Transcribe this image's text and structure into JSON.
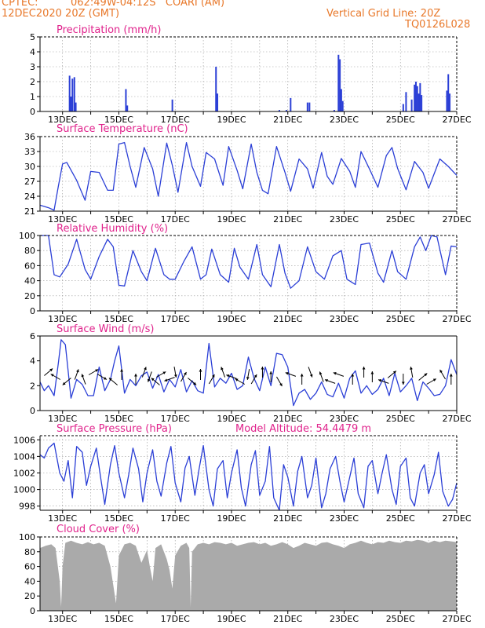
{
  "header": {
    "source": "CPTEC:",
    "location": "062:49W-04:12S   COARI (AM)",
    "datetime": "12DEC2020 20Z (GMT)",
    "grid_note": "Vertical Grid Line: 20Z",
    "product_code": "TQ0126L028"
  },
  "colors": {
    "header": "#e8782a",
    "title": "#e0238c",
    "line": "#2b3fd6",
    "cloud": "#aaaaaa",
    "grid": "#9a9a9a"
  },
  "chart_data": [
    {
      "type": "bar",
      "title": "Precipitation (mm/h)",
      "ylim": [
        0,
        5
      ],
      "yticks": [
        0,
        1,
        2,
        3,
        4,
        5
      ],
      "xlim": [
        12.2,
        27
      ],
      "xticks": [
        "13DEC",
        "15DEC",
        "17DEC",
        "19DEC",
        "21DEC",
        "23DEC",
        "25DEC",
        "27DEC"
      ],
      "grid": true,
      "bars": [
        {
          "x": 13.25,
          "y": 2.4
        },
        {
          "x": 13.3,
          "y": 1.0
        },
        {
          "x": 13.35,
          "y": 2.2
        },
        {
          "x": 13.42,
          "y": 2.3
        },
        {
          "x": 13.47,
          "y": 0.6
        },
        {
          "x": 15.25,
          "y": 1.5
        },
        {
          "x": 15.3,
          "y": 0.4
        },
        {
          "x": 16.9,
          "y": 0.8
        },
        {
          "x": 18.45,
          "y": 3.0
        },
        {
          "x": 18.5,
          "y": 1.2
        },
        {
          "x": 20.7,
          "y": 0.1
        },
        {
          "x": 20.95,
          "y": 0.1
        },
        {
          "x": 21.1,
          "y": 0.9
        },
        {
          "x": 21.7,
          "y": 0.6
        },
        {
          "x": 21.77,
          "y": 0.6
        },
        {
          "x": 22.65,
          "y": 0.1
        },
        {
          "x": 22.8,
          "y": 3.8
        },
        {
          "x": 22.85,
          "y": 3.5
        },
        {
          "x": 22.9,
          "y": 1.5
        },
        {
          "x": 22.95,
          "y": 0.7
        },
        {
          "x": 25.1,
          "y": 0.5
        },
        {
          "x": 25.2,
          "y": 1.3
        },
        {
          "x": 25.4,
          "y": 0.8
        },
        {
          "x": 25.5,
          "y": 1.8
        },
        {
          "x": 25.55,
          "y": 2.0
        },
        {
          "x": 25.6,
          "y": 1.7
        },
        {
          "x": 25.65,
          "y": 1.2
        },
        {
          "x": 25.7,
          "y": 1.9
        },
        {
          "x": 25.75,
          "y": 1.1
        },
        {
          "x": 26.65,
          "y": 1.4
        },
        {
          "x": 26.7,
          "y": 2.5
        },
        {
          "x": 26.75,
          "y": 1.2
        }
      ]
    },
    {
      "type": "line",
      "title": "Surface Temperature (nC)",
      "ylim": [
        21,
        36
      ],
      "yticks": [
        21,
        24,
        27,
        30,
        33,
        36
      ],
      "xlim": [
        12.2,
        27
      ],
      "xticks": [
        "13DEC",
        "15DEC",
        "17DEC",
        "19DEC",
        "21DEC",
        "23DEC",
        "25DEC",
        "27DEC"
      ],
      "grid": true,
      "x": [
        12.2,
        12.5,
        12.7,
        12.85,
        13.0,
        13.15,
        13.5,
        13.8,
        14.0,
        14.3,
        14.6,
        14.8,
        15.0,
        15.2,
        15.4,
        15.6,
        15.9,
        16.2,
        16.4,
        16.7,
        16.9,
        17.1,
        17.4,
        17.6,
        17.9,
        18.1,
        18.4,
        18.7,
        18.9,
        19.2,
        19.4,
        19.7,
        19.9,
        20.1,
        20.3,
        20.6,
        20.9,
        21.1,
        21.4,
        21.7,
        21.9,
        22.2,
        22.4,
        22.6,
        22.9,
        23.2,
        23.4,
        23.6,
        23.9,
        24.2,
        24.5,
        24.7,
        24.9,
        25.2,
        25.5,
        25.8,
        26.0,
        26.4,
        26.7,
        27.0
      ],
      "y": [
        22.2,
        21.7,
        21.2,
        26,
        30.5,
        30.8,
        27.2,
        23.2,
        29.0,
        28.8,
        25.2,
        25.2,
        34.5,
        34.8,
        30.0,
        25.8,
        33.8,
        29.5,
        24.0,
        34.7,
        30.2,
        24.8,
        34.8,
        30.0,
        26.0,
        32.8,
        31.5,
        26.2,
        34.0,
        29.2,
        25.5,
        34.5,
        28.8,
        25.2,
        24.5,
        34.0,
        28.8,
        25.0,
        31.5,
        29.5,
        25.6,
        32.8,
        28.0,
        26.4,
        31.6,
        29.0,
        25.8,
        33.0,
        29.5,
        25.8,
        32.2,
        33.8,
        29.6,
        25.3,
        31.0,
        28.8,
        25.6,
        31.5,
        30.0,
        28.2
      ]
    },
    {
      "type": "line",
      "title": "Relative Humidity (%)",
      "ylim": [
        0,
        100
      ],
      "yticks": [
        0,
        20,
        40,
        60,
        80,
        100
      ],
      "xlim": [
        12.2,
        27
      ],
      "xticks": [
        "13DEC",
        "15DEC",
        "17DEC",
        "19DEC",
        "21DEC",
        "23DEC",
        "25DEC",
        "27DEC"
      ],
      "grid": true,
      "x": [
        12.2,
        12.5,
        12.7,
        12.9,
        13.2,
        13.5,
        13.8,
        14.0,
        14.3,
        14.6,
        14.8,
        15.0,
        15.2,
        15.5,
        15.8,
        16.0,
        16.3,
        16.6,
        16.8,
        17.0,
        17.3,
        17.6,
        17.9,
        18.1,
        18.3,
        18.6,
        18.9,
        19.1,
        19.3,
        19.6,
        19.9,
        20.1,
        20.4,
        20.7,
        20.9,
        21.1,
        21.4,
        21.7,
        22.0,
        22.3,
        22.6,
        22.9,
        23.1,
        23.4,
        23.6,
        23.9,
        24.2,
        24.4,
        24.7,
        24.9,
        25.2,
        25.5,
        25.7,
        25.9,
        26.1,
        26.3,
        26.6,
        26.8,
        27.0
      ],
      "y": [
        100,
        100,
        48,
        45,
        62,
        95,
        55,
        42,
        72,
        95,
        85,
        34,
        33,
        80,
        52,
        40,
        83,
        48,
        42,
        42,
        65,
        85,
        42,
        48,
        82,
        48,
        38,
        83,
        58,
        42,
        88,
        48,
        32,
        88,
        50,
        30,
        40,
        85,
        52,
        42,
        73,
        80,
        42,
        35,
        88,
        90,
        50,
        38,
        80,
        52,
        42,
        85,
        98,
        80,
        100,
        98,
        48,
        86,
        85
      ]
    },
    {
      "type": "line",
      "title": "Surface Wind (m/s)",
      "ylim": [
        0,
        6
      ],
      "yticks": [
        0,
        2,
        4,
        6
      ],
      "xlim": [
        12.2,
        27
      ],
      "xticks": [
        "13DEC",
        "15DEC",
        "17DEC",
        "19DEC",
        "21DEC",
        "23DEC",
        "25DEC",
        "27DEC"
      ],
      "grid": false,
      "x": [
        12.2,
        12.35,
        12.5,
        12.7,
        12.85,
        12.95,
        13.1,
        13.3,
        13.5,
        13.7,
        13.9,
        14.1,
        14.3,
        14.5,
        14.7,
        14.85,
        15.0,
        15.2,
        15.4,
        15.6,
        15.8,
        16.0,
        16.2,
        16.4,
        16.6,
        16.8,
        17.0,
        17.2,
        17.4,
        17.6,
        17.8,
        18.0,
        18.2,
        18.4,
        18.6,
        18.8,
        19.0,
        19.2,
        19.4,
        19.6,
        19.8,
        20.0,
        20.2,
        20.4,
        20.6,
        20.8,
        21.0,
        21.2,
        21.4,
        21.6,
        21.8,
        22.0,
        22.2,
        22.4,
        22.6,
        22.8,
        23.0,
        23.2,
        23.4,
        23.6,
        23.8,
        24.0,
        24.2,
        24.4,
        24.6,
        24.8,
        25.0,
        25.2,
        25.4,
        25.6,
        25.8,
        26.0,
        26.2,
        26.4,
        26.6,
        26.8,
        27.0
      ],
      "y": [
        2.3,
        1.6,
        2.0,
        1.2,
        3.8,
        5.7,
        5.3,
        1.0,
        2.5,
        2.1,
        1.2,
        1.2,
        3.5,
        1.6,
        2.5,
        4.0,
        5.2,
        1.4,
        2.5,
        2.0,
        2.8,
        3.1,
        1.8,
        2.9,
        1.5,
        2.5,
        1.9,
        3.3,
        1.5,
        2.4,
        1.6,
        1.4,
        5.4,
        1.9,
        2.6,
        2.2,
        3.0,
        1.7,
        2.0,
        4.3,
        2.6,
        1.6,
        3.5,
        2.0,
        4.6,
        4.5,
        3.5,
        0.4,
        1.4,
        1.7,
        0.9,
        1.4,
        2.3,
        1.3,
        1.1,
        2.2,
        1.0,
        2.6,
        3.2,
        1.4,
        2.0,
        1.3,
        1.7,
        2.6,
        1.2,
        3.0,
        1.5,
        2.0,
        2.6,
        0.8,
        2.3,
        1.8,
        1.2,
        1.3,
        2.0,
        4.1,
        2.9
      ]
    },
    {
      "type": "line",
      "title": "Surface Pressure (hPa)",
      "annotation": "Model Altitude: 54.4479  m",
      "ylim": [
        997.5,
        1006.5
      ],
      "yticks": [
        998,
        1000,
        1002,
        1004,
        1006
      ],
      "xlim": [
        12.2,
        27
      ],
      "xticks": [
        "13DEC",
        "15DEC",
        "17DEC",
        "19DEC",
        "21DEC",
        "23DEC",
        "25DEC",
        "27DEC"
      ],
      "grid": true,
      "x": [
        12.2,
        12.35,
        12.5,
        12.7,
        12.9,
        13.05,
        13.2,
        13.35,
        13.5,
        13.7,
        13.85,
        14.0,
        14.2,
        14.35,
        14.5,
        14.7,
        14.85,
        15.0,
        15.2,
        15.35,
        15.5,
        15.7,
        15.85,
        16.0,
        16.2,
        16.35,
        16.5,
        16.7,
        16.85,
        17.0,
        17.2,
        17.35,
        17.5,
        17.7,
        17.85,
        18.0,
        18.2,
        18.35,
        18.5,
        18.7,
        18.85,
        19.0,
        19.2,
        19.35,
        19.5,
        19.7,
        19.85,
        20.0,
        20.2,
        20.35,
        20.5,
        20.7,
        20.85,
        21.0,
        21.2,
        21.35,
        21.5,
        21.7,
        21.85,
        22.0,
        22.2,
        22.35,
        22.5,
        22.7,
        22.85,
        23.0,
        23.2,
        23.35,
        23.5,
        23.7,
        23.85,
        24.0,
        24.2,
        24.35,
        24.5,
        24.7,
        24.85,
        25.0,
        25.2,
        25.35,
        25.5,
        25.7,
        25.85,
        26.0,
        26.2,
        26.35,
        26.5,
        26.7,
        26.85,
        27.0
      ],
      "y": [
        1004.2,
        1003.8,
        1005.0,
        1005.6,
        1002.0,
        1001.0,
        1003.5,
        999.0,
        1005.2,
        1004.5,
        1000.5,
        1002.8,
        1005.0,
        1001.5,
        998.2,
        1003.0,
        1005.3,
        1002.0,
        999.0,
        1001.8,
        1005.0,
        1002.5,
        998.5,
        1002.0,
        1004.8,
        1001.0,
        999.2,
        1003.2,
        1005.2,
        1000.8,
        998.5,
        1002.6,
        1004.0,
        999.3,
        1002.5,
        1005.3,
        1000.0,
        998.0,
        1002.5,
        1003.5,
        999.0,
        1002.0,
        1004.8,
        1000.2,
        998.0,
        1003.0,
        1004.7,
        999.3,
        1001.0,
        1005.2,
        999.0,
        997.5,
        1003.0,
        1001.5,
        998.0,
        1002.2,
        1004.0,
        999.0,
        1000.5,
        1003.8,
        997.8,
        999.5,
        1002.5,
        1004.0,
        1001.0,
        998.5,
        1001.5,
        1003.8,
        999.5,
        997.8,
        1002.8,
        1003.5,
        999.5,
        1002.0,
        1004.2,
        1000.0,
        998.2,
        1002.8,
        1003.8,
        999.0,
        998.0,
        1002.0,
        1003.0,
        999.5,
        1001.8,
        1004.5,
        999.8,
        998.0,
        998.8,
        1000.8
      ]
    },
    {
      "type": "area",
      "title": "Cloud Cover (%)",
      "ylim": [
        0,
        100
      ],
      "yticks": [
        0,
        20,
        40,
        60,
        80,
        100
      ],
      "xlim": [
        12.2,
        27
      ],
      "xticks": [
        "13DEC",
        "15DEC",
        "17DEC",
        "19DEC",
        "21DEC",
        "23DEC",
        "25DEC",
        "27DEC"
      ],
      "grid": true,
      "x": [
        12.2,
        12.4,
        12.6,
        12.75,
        12.9,
        12.95,
        13.0,
        13.1,
        13.3,
        13.5,
        13.7,
        13.9,
        14.1,
        14.3,
        14.5,
        14.7,
        14.8,
        14.9,
        15.0,
        15.2,
        15.4,
        15.6,
        15.8,
        16.0,
        16.1,
        16.2,
        16.3,
        16.5,
        16.7,
        16.8,
        16.9,
        17.0,
        17.2,
        17.4,
        17.5,
        17.55,
        17.6,
        17.8,
        18.0,
        18.2,
        18.4,
        18.6,
        18.8,
        19.0,
        19.2,
        19.4,
        19.6,
        19.8,
        20.0,
        20.2,
        20.4,
        20.6,
        20.8,
        21.0,
        21.2,
        21.4,
        21.6,
        21.8,
        22.0,
        22.2,
        22.4,
        22.6,
        22.8,
        23.0,
        23.2,
        23.4,
        23.6,
        23.8,
        24.0,
        24.2,
        24.4,
        24.6,
        24.8,
        25.0,
        25.2,
        25.4,
        25.6,
        25.8,
        26.0,
        26.2,
        26.4,
        26.6,
        26.8,
        27.0
      ],
      "y": [
        85,
        88,
        90,
        85,
        40,
        5,
        60,
        92,
        95,
        92,
        90,
        93,
        90,
        92,
        88,
        60,
        35,
        10,
        75,
        90,
        92,
        88,
        65,
        82,
        60,
        40,
        85,
        90,
        70,
        55,
        30,
        75,
        88,
        92,
        85,
        5,
        80,
        90,
        92,
        90,
        93,
        92,
        90,
        92,
        88,
        90,
        92,
        93,
        90,
        92,
        88,
        90,
        93,
        90,
        85,
        88,
        92,
        90,
        88,
        92,
        93,
        90,
        88,
        85,
        90,
        92,
        95,
        92,
        90,
        93,
        92,
        95,
        93,
        92,
        95,
        94,
        96,
        95,
        92,
        95,
        93,
        95,
        94,
        93
      ]
    }
  ]
}
